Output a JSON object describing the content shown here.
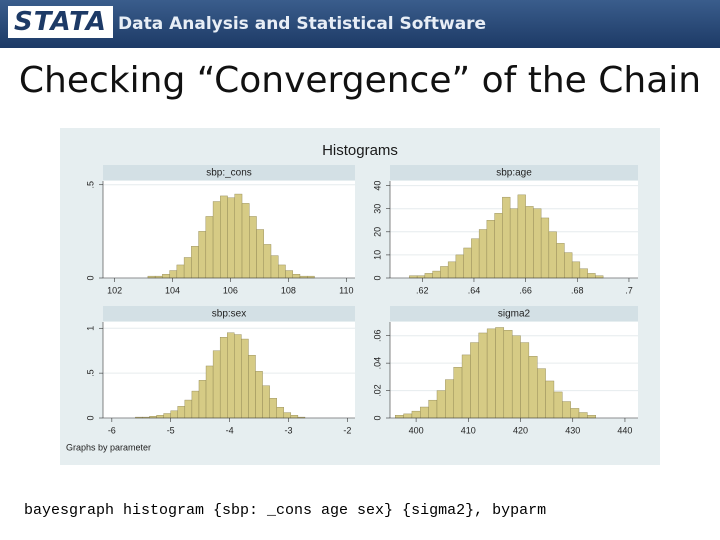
{
  "header": {
    "logo": "STATA",
    "tagline": "Data Analysis and Statistical Software"
  },
  "title": "Checking “Convergence” of the Chain",
  "figure": {
    "title": "Histograms",
    "note": "Graphs by parameter"
  },
  "chart_data": [
    {
      "type": "histogram",
      "title": "sbp:_cons",
      "color": "#d6cb85",
      "bins": [
        102.9,
        103.15,
        103.4,
        103.65,
        103.9,
        104.15,
        104.4,
        104.65,
        104.9,
        105.15,
        105.4,
        105.65,
        105.9,
        106.15,
        106.4,
        106.65,
        106.9,
        107.15,
        107.4,
        107.65,
        107.9,
        108.15,
        108.4,
        108.65,
        108.9,
        109.15
      ],
      "values": [
        0.0,
        0.01,
        0.01,
        0.02,
        0.04,
        0.07,
        0.11,
        0.17,
        0.25,
        0.33,
        0.41,
        0.44,
        0.43,
        0.45,
        0.4,
        0.33,
        0.26,
        0.18,
        0.12,
        0.07,
        0.04,
        0.02,
        0.01,
        0.01,
        0.0
      ],
      "xlim": [
        101.6,
        110.3
      ],
      "xticks": [
        102,
        104,
        106,
        108,
        110
      ],
      "ylim": [
        0,
        0.52
      ],
      "yticks": [
        0,
        {
          "value": 0.5,
          "label": ".5"
        }
      ],
      "grid": true
    },
    {
      "type": "histogram",
      "title": "sbp:age",
      "color": "#d6cb85",
      "bins": [
        0.615,
        0.618,
        0.621,
        0.624,
        0.627,
        0.63,
        0.633,
        0.636,
        0.639,
        0.642,
        0.645,
        0.648,
        0.651,
        0.654,
        0.657,
        0.66,
        0.663,
        0.666,
        0.669,
        0.672,
        0.675,
        0.678,
        0.681,
        0.684,
        0.687,
        0.69
      ],
      "values": [
        1,
        1,
        2,
        3,
        5,
        7,
        10,
        13,
        17,
        21,
        25,
        28,
        35,
        30,
        36,
        31,
        30,
        26,
        20,
        15,
        11,
        7,
        4,
        2,
        1
      ],
      "xlim": [
        0.6075,
        0.7035
      ],
      "xticks": [
        {
          "value": 0.62,
          "label": ".62"
        },
        {
          "value": 0.64,
          "label": ".64"
        },
        {
          "value": 0.66,
          "label": ".66"
        },
        {
          "value": 0.68,
          "label": ".68"
        },
        {
          "value": 0.7,
          "label": ".7"
        }
      ],
      "ylim": [
        0,
        42
      ],
      "yticks": [
        0,
        10,
        20,
        30,
        40
      ],
      "grid": true
    },
    {
      "type": "histogram",
      "title": "sbp:sex",
      "color": "#d6cb85",
      "bins": [
        -5.6,
        -5.48,
        -5.36,
        -5.24,
        -5.12,
        -5,
        -4.88,
        -4.76,
        -4.64,
        -4.52,
        -4.4,
        -4.28,
        -4.16,
        -4.04,
        -3.92,
        -3.8,
        -3.68,
        -3.56,
        -3.44,
        -3.32,
        -3.2,
        -3.08,
        -2.96,
        -2.84,
        -2.72
      ],
      "values": [
        0.01,
        0.01,
        0.02,
        0.03,
        0.05,
        0.08,
        0.13,
        0.2,
        0.3,
        0.42,
        0.58,
        0.75,
        0.9,
        0.95,
        0.93,
        0.88,
        0.7,
        0.52,
        0.36,
        0.22,
        0.12,
        0.06,
        0.03,
        0.01
      ],
      "xlim": [
        -6.15,
        -1.87
      ],
      "xticks": [
        -6,
        -5,
        -4,
        -3,
        -2
      ],
      "ylim": [
        0,
        1.07
      ],
      "yticks": [
        0,
        {
          "value": 0.5,
          "label": ".5"
        },
        1
      ],
      "grid": true
    },
    {
      "type": "histogram",
      "title": "sigma2",
      "color": "#d6cb85",
      "bins": [
        396,
        397.6,
        399.2,
        400.8,
        402.4,
        404,
        405.6,
        407.2,
        408.8,
        410.4,
        412,
        413.6,
        415.2,
        416.8,
        418.4,
        420,
        421.6,
        423.2,
        424.8,
        426.4,
        428,
        429.6,
        431.2,
        432.8,
        434.4
      ],
      "values": [
        0.002,
        0.003,
        0.005,
        0.008,
        0.013,
        0.02,
        0.028,
        0.037,
        0.046,
        0.055,
        0.062,
        0.065,
        0.066,
        0.064,
        0.06,
        0.055,
        0.045,
        0.036,
        0.027,
        0.019,
        0.012,
        0.007,
        0.004,
        0.002
      ],
      "xlim": [
        395,
        442.5
      ],
      "xticks": [
        400,
        410,
        420,
        430,
        440
      ],
      "ylim": [
        0,
        0.07
      ],
      "yticks": [
        0,
        {
          "value": 0.02,
          "label": ".02"
        },
        {
          "value": 0.04,
          "label": ".04"
        },
        {
          "value": 0.06,
          "label": ".06"
        }
      ],
      "grid": true
    }
  ],
  "command": "bayesgraph histogram {sbp: _cons age sex} {sigma2}, byparm"
}
